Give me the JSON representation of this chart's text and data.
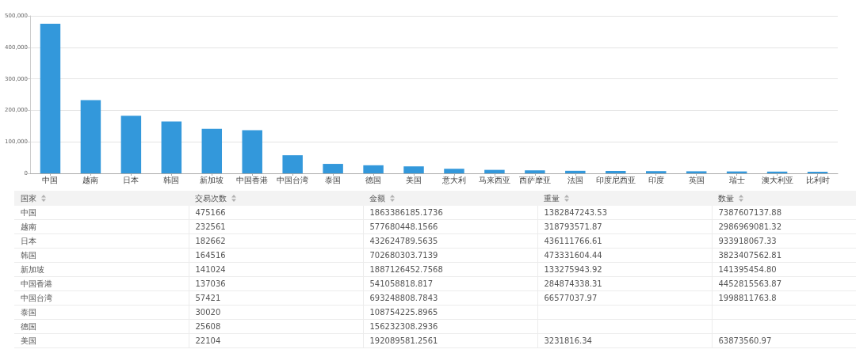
{
  "chart_data": [
    {
      "type": "bar",
      "categories": [
        "中国",
        "越南",
        "日本",
        "韩国",
        "新加坡",
        "中国香港",
        "中国台湾",
        "泰国",
        "德国",
        "美国",
        "意大利",
        "马来西亚",
        "西萨摩亚",
        "法国",
        "印度尼西亚",
        "印度",
        "英国",
        "瑞士",
        "澳大利亚",
        "比利时"
      ],
      "values": [
        475166,
        232561,
        182662,
        164516,
        141024,
        137036,
        57421,
        30020,
        25608,
        22104,
        14500,
        11000,
        9500,
        8000,
        7500,
        7000,
        6500,
        6000,
        5500,
        5000
      ],
      "color": "#3398db",
      "ylim": [
        0,
        500000
      ],
      "yticks": [
        0,
        {
          "value": 100000,
          "label": "100,000"
        },
        {
          "value": 200000,
          "label": "200,000"
        },
        {
          "value": 300000,
          "label": "300,000"
        },
        {
          "value": 400000,
          "label": "400,000"
        },
        {
          "value": 500000,
          "label": "500,000"
        }
      ],
      "grid": "y"
    },
    {
      "type": "other",
      "categories": [
        "国家",
        "交易次数",
        "金额",
        "重量",
        "数量"
      ],
      "cells": [
        [
          "中国",
          "475166",
          "1863386185.1736",
          "1382847243.53",
          "7387607137.88"
        ],
        [
          "越南",
          "232561",
          "577680448.1566",
          "318793571.87",
          "2986969081.32"
        ],
        [
          "日本",
          "182662",
          "432624789.5635",
          "436111766.61",
          "933918067.33"
        ],
        [
          "韩国",
          "164516",
          "702680303.7139",
          "473331604.44",
          "3823407562.81"
        ],
        [
          "新加坡",
          "141024",
          "1887126452.7568",
          "133275943.92",
          "141395454.80"
        ],
        [
          "中国香港",
          "137036",
          "541058818.817",
          "284874338.31",
          "4452815563.87"
        ],
        [
          "中国台湾",
          "57421",
          "693248808.7843",
          "66577037.97",
          "1998811763.8"
        ],
        [
          "泰国",
          "30020",
          "108754225.8965",
          null,
          null
        ],
        [
          "德国",
          "25608",
          "156232308.2936",
          null,
          null
        ],
        [
          "美国",
          "22104",
          "192089581.2561",
          "3231816.34",
          "63873560.97"
        ]
      ]
    }
  ]
}
